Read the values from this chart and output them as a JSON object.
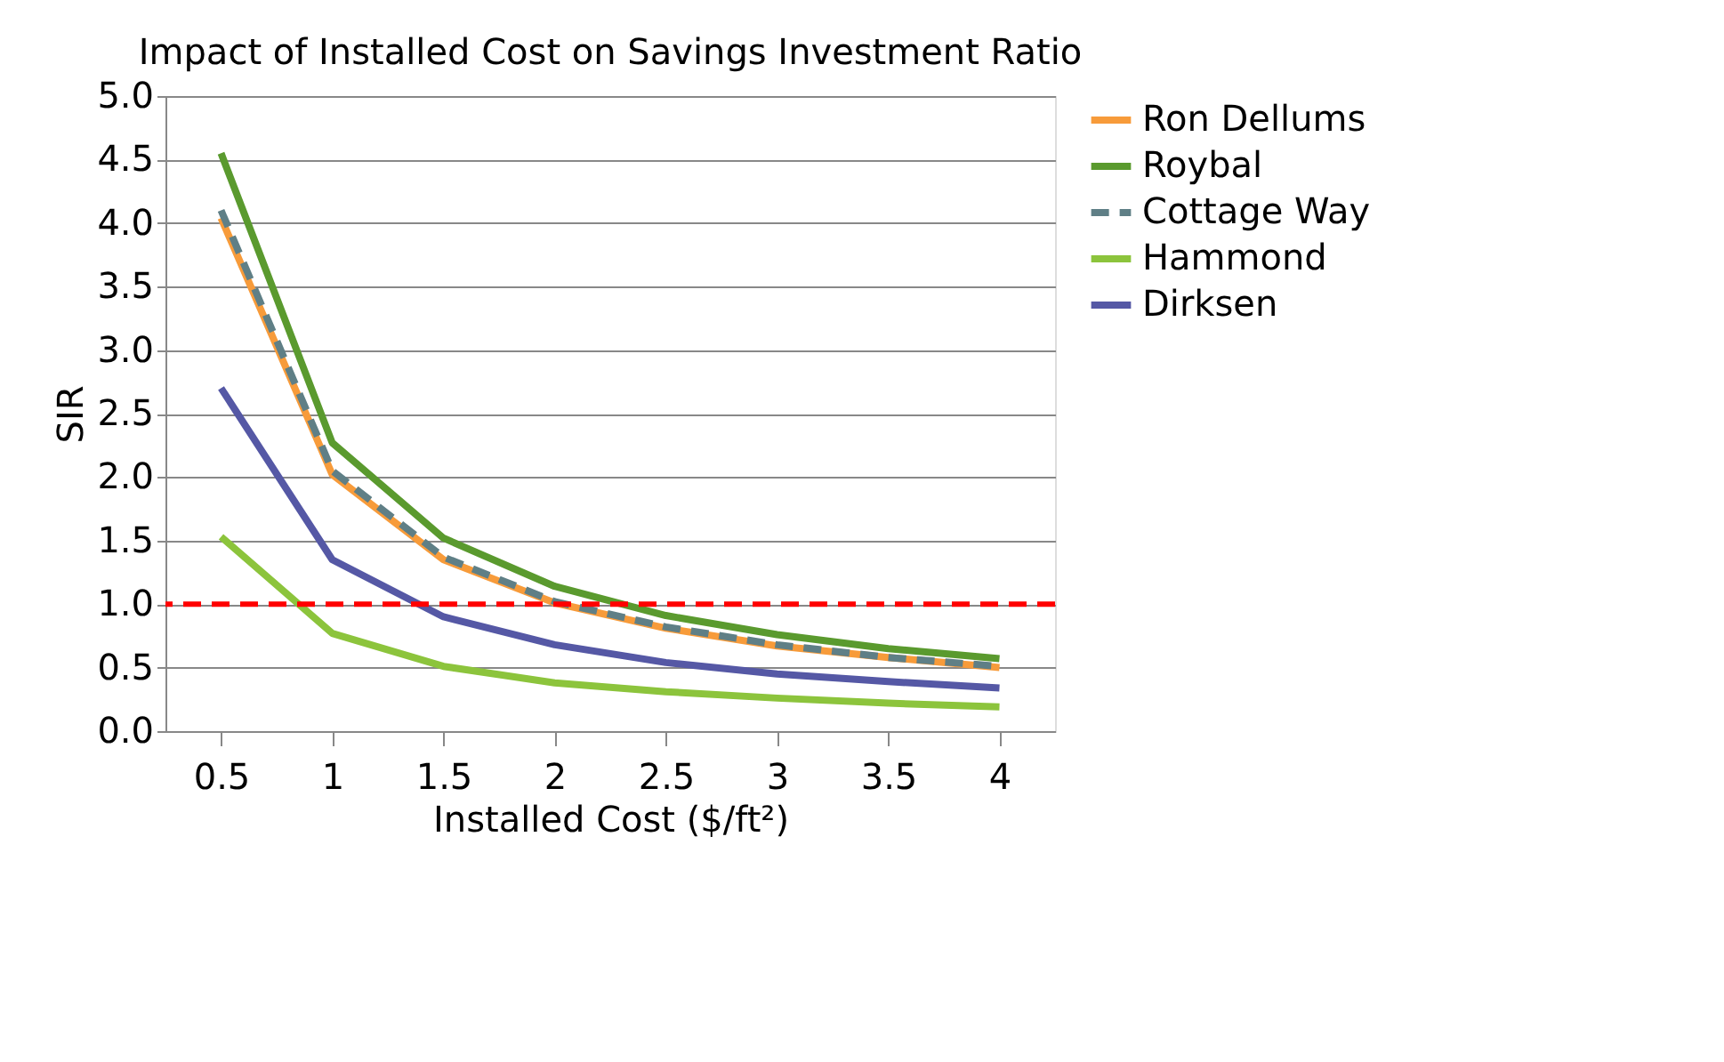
{
  "chart_data": {
    "type": "line",
    "title": "Impact of Installed Cost on Savings Investment Ratio",
    "xlabel": "Installed Cost ($/ft²)",
    "ylabel": "SIR",
    "categories": [
      "0.5",
      "1",
      "1.5",
      "2",
      "2.5",
      "3",
      "3.5",
      "4"
    ],
    "series": [
      {
        "name": "Ron Dellums",
        "color": "#f79b3a",
        "line_style": "solid",
        "values": [
          4.04,
          2.02,
          1.35,
          1.01,
          0.81,
          0.67,
          0.58,
          0.5
        ]
      },
      {
        "name": "Roybal",
        "color": "#5a9a2e",
        "line_style": "solid",
        "values": [
          4.55,
          2.27,
          1.52,
          1.14,
          0.91,
          0.76,
          0.65,
          0.57
        ]
      },
      {
        "name": "Cottage Way",
        "color": "#5f7f86",
        "line_style": "dashed",
        "values": [
          4.1,
          2.05,
          1.37,
          1.02,
          0.82,
          0.68,
          0.58,
          0.51
        ]
      },
      {
        "name": "Hammond",
        "color": "#8cc43c",
        "line_style": "solid",
        "values": [
          1.53,
          0.77,
          0.51,
          0.38,
          0.31,
          0.26,
          0.22,
          0.19
        ]
      },
      {
        "name": "Dirksen",
        "color": "#5558a5",
        "line_style": "solid",
        "values": [
          2.7,
          1.35,
          0.9,
          0.68,
          0.54,
          0.45,
          0.39,
          0.34
        ]
      }
    ],
    "ylim": [
      0,
      5
    ],
    "yticks": [
      {
        "value": 0,
        "label": "0.0"
      },
      0.5,
      {
        "value": 1,
        "label": "1.0"
      },
      1.5,
      {
        "value": 2,
        "label": "2.0"
      },
      2.5,
      {
        "value": 3,
        "label": "3.0"
      },
      3.5,
      {
        "value": 4,
        "label": "4.0"
      },
      4.5,
      {
        "value": 5,
        "label": "5.0"
      }
    ],
    "ref_lines": [
      {
        "axis": "y",
        "value": 1,
        "color": "#ff0000",
        "line_style": "dashed"
      }
    ],
    "grid": "y",
    "legend": "right",
    "marker": "none"
  }
}
